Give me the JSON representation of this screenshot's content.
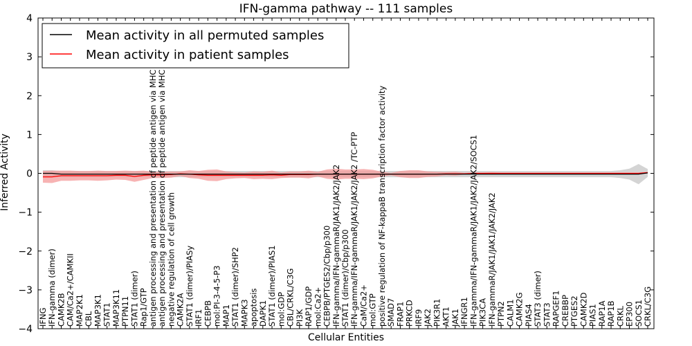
{
  "chart_data": {
    "type": "line",
    "title": "IFN-gamma pathway -- 111 samples",
    "xlabel": "Cellular Entities",
    "ylabel": "Inferred Activity",
    "ylim": [
      -4,
      4
    ],
    "yticks": [
      -4,
      -3,
      -2,
      -1,
      0,
      1,
      2,
      3,
      4
    ],
    "ytick_labels": [
      "−4",
      "−3",
      "−2",
      "−1",
      "0",
      "1",
      "2",
      "3",
      "4"
    ],
    "grid": false,
    "legend_position": "top-left",
    "categories": [
      "IFNG",
      "IFN-gamma (dimer)",
      "CAMK2B",
      "CAM/Ca2+/CAMKII",
      "MAP2K1",
      "CBL",
      "MAP3K1",
      "STAT1",
      "MAP3K11",
      "PTPN11",
      "STAT1 (dimer)",
      "Rap1/GTP",
      "antigen processing and presentation of peptide antigen via MHC class I",
      "antigen processing and presentation of peptide antigen via MHC class II",
      "negative regulation of cell growth",
      "CAMK2A",
      "STAT1 (dimer)/PIASy",
      "IRF1",
      "CEBPB",
      "mol:PI-3-4-5-P3",
      "MAP1",
      "STAT1 (dimer)/SHP2",
      "MAPK3",
      "apoptosis",
      "DAPK1",
      "STAT1 (dimer)/PIAS1",
      "mol:GDP",
      "CBL/CRKL/C3G",
      "PI3K",
      "RAP1/GDP",
      "mol:Ca2+",
      "CEBPB/PTGES2/Cbp/p300",
      "IFN-gamma/IFN-gammaR/JAK1/JAK2/JAK2",
      "STAT1 (dimer)/Cbp/p300",
      "IFN-gamma/IFN-gammaR/JAK1/JAK2/JAK2 /TC-PTP",
      "CaM/Ca2+",
      "mol:GTP",
      "positive regulation of NF-kappaB transcription factor activity",
      "SMAD7",
      "FRAP1",
      "PRKCD",
      "IRF9",
      "JAK2",
      "PIK3R1",
      "AKT1",
      "JAK1",
      "IFNGR1",
      "IFN-gamma/IFN-gammaR/JAK1/JAK2/JAK2/SOCS1",
      "PIK3CA",
      "IFN-gammaR/JAK1/JAK1/JAK2/JAK2",
      "PTPN2",
      "CALM1",
      "CAMK2G",
      "PIAS4",
      "STAT3 (dimer)",
      "STAT3",
      "RAPGEF1",
      "CREBBP",
      "PTGES2",
      "CAMK2D",
      "PIAS1",
      "RAP1A",
      "RAP1B",
      "CRKL",
      "EP300",
      "SOCS1",
      "CRKL/C3G"
    ],
    "series": [
      {
        "name": "Mean activity in all permuted samples",
        "color": "#000000",
        "band_color": "#b0b0b0",
        "values": [
          0.0,
          0.0,
          -0.02,
          -0.02,
          -0.02,
          -0.02,
          -0.02,
          -0.02,
          -0.02,
          -0.02,
          -0.02,
          -0.02,
          -0.02,
          -0.02,
          -0.02,
          -0.02,
          -0.02,
          -0.02,
          -0.02,
          -0.02,
          -0.02,
          -0.02,
          -0.02,
          -0.02,
          -0.02,
          -0.02,
          -0.02,
          -0.02,
          -0.02,
          -0.02,
          -0.02,
          -0.02,
          -0.02,
          -0.02,
          -0.02,
          -0.02,
          -0.02,
          -0.02,
          -0.02,
          -0.02,
          -0.02,
          -0.02,
          -0.02,
          -0.02,
          -0.02,
          -0.02,
          -0.02,
          -0.02,
          -0.02,
          -0.02,
          -0.02,
          -0.02,
          -0.02,
          -0.02,
          -0.02,
          -0.02,
          -0.02,
          -0.02,
          -0.02,
          -0.02,
          -0.02,
          -0.02,
          -0.02,
          -0.02,
          -0.02,
          -0.02,
          0.01
        ],
        "band": [
          0.08,
          0.08,
          0.08,
          0.08,
          0.08,
          0.08,
          0.08,
          0.08,
          0.08,
          0.08,
          0.08,
          0.08,
          0.08,
          0.08,
          0.08,
          0.08,
          0.08,
          0.08,
          0.08,
          0.08,
          0.08,
          0.08,
          0.08,
          0.08,
          0.08,
          0.08,
          0.08,
          0.08,
          0.08,
          0.08,
          0.08,
          0.08,
          0.08,
          0.08,
          0.08,
          0.08,
          0.08,
          0.08,
          0.08,
          0.08,
          0.08,
          0.08,
          0.08,
          0.08,
          0.08,
          0.08,
          0.08,
          0.08,
          0.08,
          0.08,
          0.08,
          0.08,
          0.08,
          0.08,
          0.08,
          0.08,
          0.08,
          0.08,
          0.08,
          0.08,
          0.08,
          0.08,
          0.08,
          0.1,
          0.14,
          0.26,
          0.1
        ]
      },
      {
        "name": "Mean activity in patient samples",
        "color": "#ff0000",
        "band_color": "#f49a9a",
        "values": [
          -0.09,
          -0.09,
          -0.06,
          -0.06,
          -0.06,
          -0.06,
          -0.06,
          -0.06,
          -0.05,
          -0.05,
          -0.08,
          -0.05,
          -0.04,
          -0.04,
          -0.03,
          -0.01,
          -0.02,
          -0.04,
          -0.05,
          -0.05,
          -0.05,
          -0.05,
          -0.05,
          -0.05,
          -0.05,
          -0.04,
          -0.05,
          -0.03,
          -0.03,
          -0.03,
          -0.02,
          -0.02,
          -0.02,
          -0.02,
          -0.02,
          -0.02,
          -0.02,
          -0.02,
          -0.02,
          -0.02,
          -0.02,
          -0.02,
          -0.02,
          -0.02,
          -0.01,
          -0.01,
          -0.01,
          0.0,
          0.0,
          0.0,
          0.0,
          0.0,
          0.0,
          0.0,
          0.0,
          0.0,
          0.0,
          0.0,
          0.0,
          0.0,
          0.0,
          0.0,
          0.0,
          0.0,
          0.0,
          0.0,
          0.02
        ],
        "band": [
          0.15,
          0.16,
          0.13,
          0.13,
          0.12,
          0.12,
          0.13,
          0.12,
          0.11,
          0.12,
          0.14,
          0.12,
          0.08,
          0.08,
          0.08,
          0.06,
          0.1,
          0.1,
          0.14,
          0.15,
          0.1,
          0.08,
          0.07,
          0.1,
          0.09,
          0.11,
          0.07,
          0.08,
          0.08,
          0.1,
          0.06,
          0.12,
          0.14,
          0.12,
          0.12,
          0.13,
          0.11,
          0.06,
          0.03,
          0.08,
          0.1,
          0.1,
          0.07,
          0.06,
          0.04,
          0.05,
          0.02,
          0.02,
          0.02,
          0.03,
          0.02,
          0.02,
          0.02,
          0.02,
          0.02,
          0.02,
          0.02,
          0.02,
          0.02,
          0.02,
          0.02,
          0.02,
          0.02,
          0.02,
          0.02,
          0.02,
          0.02
        ]
      }
    ]
  }
}
